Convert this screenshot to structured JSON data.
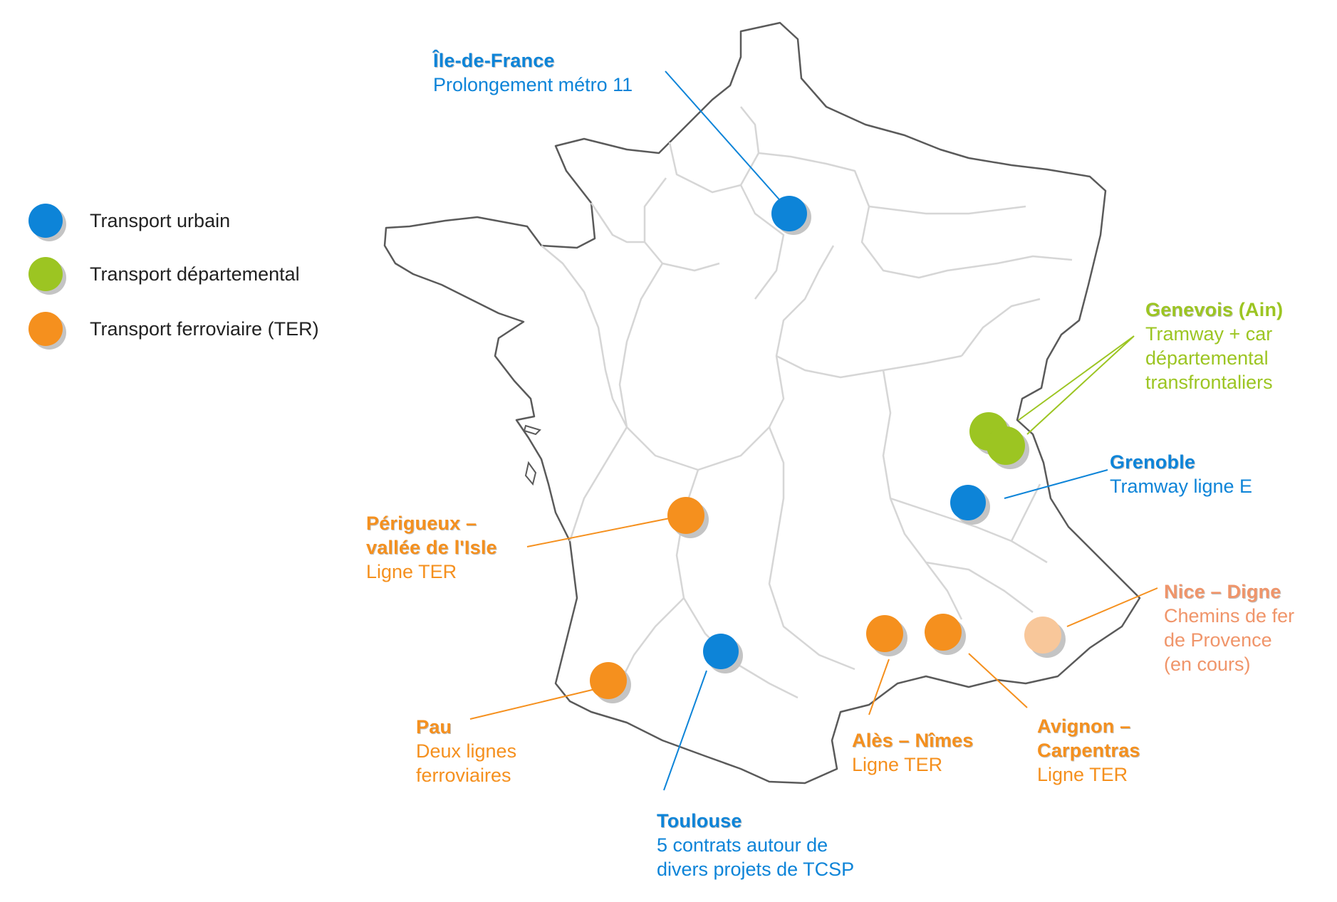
{
  "colors": {
    "urbain": "#0d84d8",
    "departemental": "#9cc522",
    "ter": "#f5901e",
    "ter_light": "#f8c79a",
    "nice_text": "#f0956a",
    "land_fill": "#ffffff",
    "coast_stroke": "#5a5a5a",
    "region_stroke": "#d6d6d6"
  },
  "legend": [
    {
      "label": "Transport urbain",
      "color": "#0d84d8",
      "icon": "blue-dot-icon"
    },
    {
      "label": "Transport départemental",
      "color": "#9cc522",
      "icon": "green-dot-icon"
    },
    {
      "label": "Transport ferroviaire (TER)",
      "color": "#f5901e",
      "icon": "orange-dot-icon"
    }
  ],
  "callouts": {
    "iledefrance": {
      "title": "Île-de-France",
      "lines": [
        "Prolongement métro 11"
      ]
    },
    "genevois": {
      "title": "Genevois",
      "title_suffix": " (Ain)",
      "lines": [
        "Tramway + car",
        "départemental",
        "transfrontaliers"
      ]
    },
    "grenoble": {
      "title": "Grenoble",
      "lines": [
        "Tramway ligne E"
      ]
    },
    "perigueux": {
      "title_lines": [
        "Périgueux –",
        "vallée de l'Isle"
      ],
      "lines": [
        "Ligne TER"
      ]
    },
    "nice": {
      "title": "Nice – Digne",
      "lines": [
        "Chemins de fer",
        "de Provence",
        "(en cours)"
      ]
    },
    "pau": {
      "title": "Pau",
      "lines": [
        "Deux lignes",
        "ferroviaires"
      ]
    },
    "ales": {
      "title": "Alès – Nîmes",
      "lines": [
        "Ligne TER"
      ]
    },
    "avignon": {
      "title_lines": [
        "Avignon –",
        "Carpentras"
      ],
      "lines": [
        "Ligne TER"
      ]
    },
    "toulouse": {
      "title": "Toulouse",
      "lines": [
        "5 contrats autour de",
        "divers projets de TCSP"
      ]
    }
  }
}
